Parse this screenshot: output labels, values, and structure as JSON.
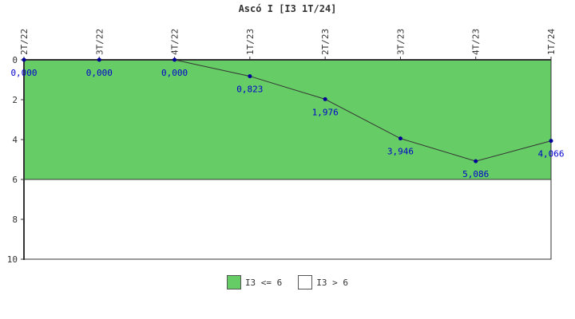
{
  "chart_data": {
    "type": "line",
    "title": "Ascó I [I3 1T/24]",
    "categories": [
      "2T/22",
      "3T/22",
      "4T/22",
      "1T/23",
      "2T/23",
      "3T/23",
      "4T/23",
      "1T/24"
    ],
    "series": [
      {
        "values": [
          0.0,
          0.0,
          0.0,
          0.823,
          1.976,
          3.946,
          5.086,
          4.066
        ],
        "value_labels": [
          "0,000",
          "0,000",
          "0,000",
          "0,823",
          "1,976",
          "3,946",
          "5,086",
          "4,066"
        ]
      }
    ],
    "ylim": [
      0,
      10
    ],
    "y_ticks": [
      "0",
      "2",
      "4",
      "6",
      "8",
      "10"
    ],
    "y_inverted": true,
    "bands": [
      {
        "from": 0,
        "to": 6,
        "color": "#66cc66",
        "label": "I3 <= 6"
      },
      {
        "from": 6,
        "to": 10,
        "color": "#ffffff",
        "label": "I3 > 6"
      }
    ],
    "colors": {
      "line": "#333333",
      "point": "#000099",
      "label": "#0000cc",
      "axis": "#333333"
    },
    "legend_placement": "bottom"
  }
}
